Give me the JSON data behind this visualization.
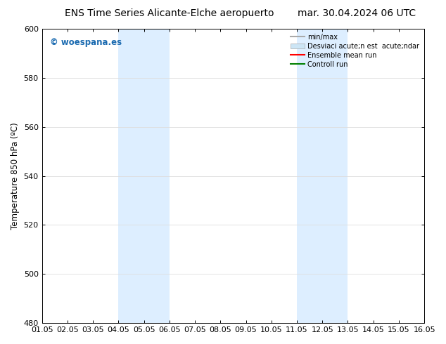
{
  "title_left": "ENS Time Series Alicante-Elche aeropuerto",
  "title_right": "mar. 30.04.2024 06 UTC",
  "ylabel": "Temperature 850 hPa (ºC)",
  "xlim": [
    0,
    15
  ],
  "ylim": [
    480,
    600
  ],
  "yticks": [
    480,
    500,
    520,
    540,
    560,
    580,
    600
  ],
  "xtick_labels": [
    "01.05",
    "02.05",
    "03.05",
    "04.05",
    "05.05",
    "06.05",
    "07.05",
    "08.05",
    "09.05",
    "10.05",
    "11.05",
    "12.05",
    "13.05",
    "14.05",
    "15.05",
    "16.05"
  ],
  "shaded_regions": [
    {
      "xmin": 3.0,
      "xmax": 5.0,
      "color": "#ddeeff"
    },
    {
      "xmin": 10.0,
      "xmax": 12.0,
      "color": "#ddeeff"
    }
  ],
  "watermark_text": "© woespana.es",
  "watermark_color": "#1a6ab0",
  "legend_entries": [
    {
      "label": "min/max",
      "color": "#aaaaaa",
      "lw": 1.5,
      "type": "line"
    },
    {
      "label": "Desviaci acute;n est  acute;ndar",
      "color": "#cce5f5",
      "lw": 8,
      "type": "patch"
    },
    {
      "label": "Ensemble mean run",
      "color": "red",
      "lw": 1.5,
      "type": "line"
    },
    {
      "label": "Controll run",
      "color": "green",
      "lw": 1.5,
      "type": "line"
    }
  ],
  "background_color": "#ffffff",
  "grid_color": "#dddddd",
  "title_fontsize": 10,
  "axis_fontsize": 8.5,
  "tick_fontsize": 8
}
